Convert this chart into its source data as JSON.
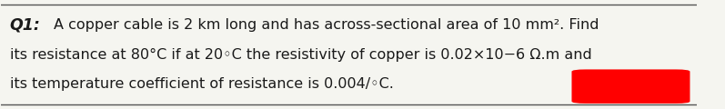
{
  "background_color": "#f5f5f0",
  "border_color": "#555555",
  "line1": "Q1: A copper cable is 2 km long and has across-sectional area of 10 mm². Find",
  "line2": "its resistance at 80°C if at 20◦C the resistivity of copper is 0.02×10−6 Ω.m and",
  "line3": "its temperature coefficient of resistance is 0.004/◦C.",
  "q1_label": "Q1",
  "text_color": "#1a1a1a",
  "font_size": 11.5,
  "q1_font_size": 12.5
}
